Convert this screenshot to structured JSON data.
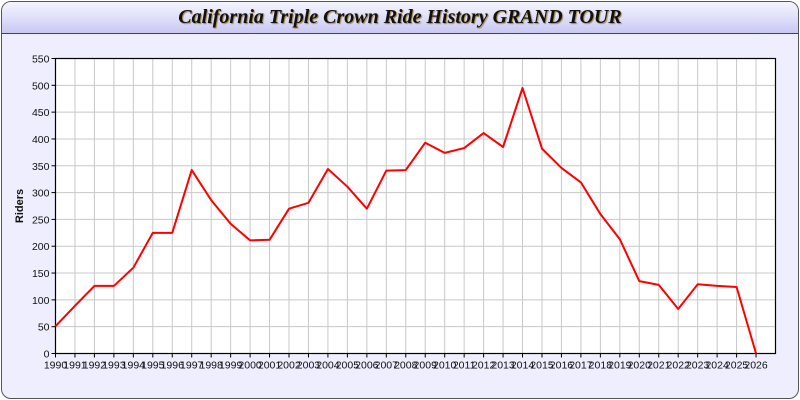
{
  "chart_data": {
    "type": "line",
    "title": "California Triple Crown Ride History GRAND TOUR",
    "xlabel": "",
    "ylabel": "Riders",
    "x": [
      1990,
      1991,
      1992,
      1993,
      1994,
      1995,
      1996,
      1997,
      1998,
      1999,
      2000,
      2001,
      2002,
      2003,
      2004,
      2005,
      2006,
      2007,
      2008,
      2009,
      2010,
      2011,
      2012,
      2013,
      2014,
      2015,
      2016,
      2017,
      2018,
      2019,
      2020,
      2021,
      2022,
      2023,
      2024,
      2025,
      2026
    ],
    "series": [
      {
        "values": [
          51,
          89,
          126,
          126,
          160,
          225,
          225,
          342,
          286,
          242,
          211,
          212,
          270,
          281,
          344,
          311,
          270,
          341,
          342,
          393,
          374,
          383,
          411,
          385,
          495,
          382,
          346,
          319,
          260,
          213,
          135,
          128,
          83,
          129,
          126,
          124,
          0
        ],
        "color": "#ff0000"
      }
    ],
    "xlim": [
      1990,
      2027
    ],
    "ylim": [
      0,
      550
    ],
    "yticks": [
      0,
      50,
      100,
      150,
      200,
      250,
      300,
      350,
      400,
      450,
      500,
      550
    ],
    "grid": true,
    "legend": "none"
  },
  "colors": {
    "background": "#eeeeff",
    "line": "#ff0000",
    "grid": "#c8c8c8"
  }
}
